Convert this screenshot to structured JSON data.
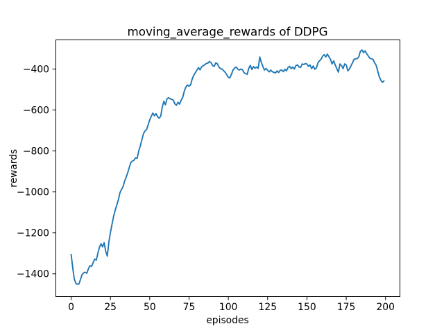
{
  "figure": {
    "background": "#ffffff",
    "spine_color": "#000000"
  },
  "chart_data": {
    "type": "line",
    "title": "moving_average_rewards of DDPG",
    "xlabel": "episodes",
    "ylabel": "rewards",
    "grid": false,
    "legend": null,
    "line_color": "#1f77b4",
    "x_ticks": [
      0,
      25,
      50,
      75,
      100,
      125,
      150,
      175,
      200
    ],
    "y_ticks": [
      -400,
      -600,
      -800,
      -1000,
      -1200,
      -1400
    ],
    "xlim": [
      -9.95,
      208.95
    ],
    "ylim": [
      -1510,
      -258
    ],
    "x_start": 0,
    "x_step": 1,
    "values": [
      -1305,
      -1370,
      -1426,
      -1446,
      -1451,
      -1449,
      -1426,
      -1403,
      -1395,
      -1392,
      -1397,
      -1375,
      -1360,
      -1364,
      -1345,
      -1328,
      -1333,
      -1300,
      -1270,
      -1253,
      -1268,
      -1248,
      -1290,
      -1313,
      -1245,
      -1198,
      -1158,
      -1120,
      -1090,
      -1065,
      -1040,
      -1005,
      -988,
      -975,
      -948,
      -928,
      -906,
      -880,
      -856,
      -849,
      -845,
      -833,
      -836,
      -800,
      -776,
      -745,
      -716,
      -702,
      -696,
      -672,
      -648,
      -630,
      -615,
      -628,
      -618,
      -633,
      -640,
      -630,
      -585,
      -557,
      -575,
      -545,
      -540,
      -545,
      -548,
      -552,
      -570,
      -577,
      -562,
      -571,
      -552,
      -538,
      -508,
      -488,
      -478,
      -484,
      -477,
      -449,
      -430,
      -418,
      -405,
      -393,
      -404,
      -389,
      -384,
      -379,
      -373,
      -371,
      -363,
      -369,
      -383,
      -387,
      -370,
      -374,
      -390,
      -398,
      -400,
      -408,
      -416,
      -428,
      -440,
      -443,
      -425,
      -405,
      -395,
      -390,
      -400,
      -405,
      -400,
      -404,
      -418,
      -422,
      -426,
      -396,
      -382,
      -402,
      -388,
      -396,
      -390,
      -396,
      -341,
      -368,
      -388,
      -405,
      -397,
      -406,
      -414,
      -405,
      -413,
      -416,
      -419,
      -409,
      -417,
      -406,
      -405,
      -413,
      -401,
      -409,
      -392,
      -387,
      -398,
      -390,
      -400,
      -383,
      -380,
      -390,
      -392,
      -375,
      -378,
      -373,
      -376,
      -387,
      -380,
      -398,
      -385,
      -401,
      -395,
      -370,
      -360,
      -352,
      -337,
      -330,
      -341,
      -327,
      -340,
      -353,
      -375,
      -360,
      -380,
      -398,
      -415,
      -375,
      -383,
      -398,
      -375,
      -380,
      -409,
      -400,
      -385,
      -369,
      -352,
      -350,
      -349,
      -340,
      -313,
      -307,
      -320,
      -311,
      -325,
      -336,
      -347,
      -350,
      -352,
      -369,
      -381,
      -409,
      -437,
      -454,
      -465,
      -458
    ]
  }
}
